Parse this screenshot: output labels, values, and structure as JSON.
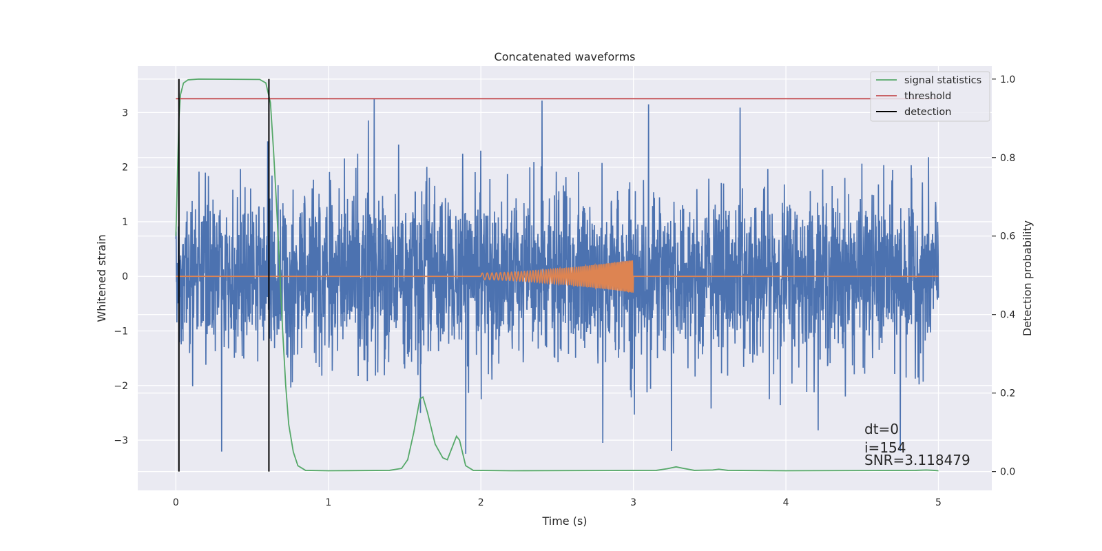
{
  "chart_data": {
    "type": "line",
    "title": "Concatenated waveforms",
    "xlabel": "Time (s)",
    "ylabel": "Whitened strain",
    "y2label": "Detection probability",
    "xlim": [
      -0.25,
      5.35
    ],
    "ylim": [
      -3.92,
      3.85
    ],
    "y2lim": [
      -0.048,
      1.033
    ],
    "xticks": [
      "0",
      "1",
      "2",
      "3",
      "4",
      "5"
    ],
    "yticks": [
      "−3",
      "−2",
      "−1",
      "0",
      "1",
      "2",
      "3"
    ],
    "y2ticks": [
      "0.0",
      "0.2",
      "0.4",
      "0.6",
      "0.8",
      "1.0"
    ],
    "grid": true,
    "legend_position": "top-right",
    "legend": [
      {
        "label": "signal statistics",
        "color": "#55a868"
      },
      {
        "label": "threshold",
        "color": "#c44e52"
      },
      {
        "label": "detection",
        "color": "#000000"
      }
    ],
    "series": [
      {
        "name": "",
        "axis": "left",
        "color": "#4c72b0",
        "description_kind": "noise",
        "x_range": [
          0,
          5
        ],
        "amplitude_typical": 0.75,
        "amplitude_peak": 3.5,
        "notable_peaks": [
          {
            "x": 1.3,
            "y": 3.25
          },
          {
            "x": 2.4,
            "y": 3.22
          },
          {
            "x": 3.1,
            "y": 3.15
          },
          {
            "x": 3.7,
            "y": 3.5
          },
          {
            "x": 0.3,
            "y": -3.55
          },
          {
            "x": 3.25,
            "y": -3.2
          },
          {
            "x": 4.75,
            "y": -3.2
          },
          {
            "x": 1.9,
            "y": -3.25
          },
          {
            "x": 2.8,
            "y": -3.05
          }
        ]
      },
      {
        "name": "",
        "axis": "left",
        "color": "#dd8452",
        "description_kind": "chirp",
        "flat": [
          [
            0,
            0
          ],
          [
            5,
            0
          ]
        ],
        "chirp_start": 2.0,
        "chirp_end": 3.0,
        "amp_start": 0.06,
        "amp_end": 0.3
      },
      {
        "name": "signal statistics",
        "axis": "right",
        "color": "#55a868",
        "points": [
          [
            0.0,
            0.6
          ],
          [
            0.01,
            0.75
          ],
          [
            0.02,
            0.9
          ],
          [
            0.03,
            0.96
          ],
          [
            0.05,
            0.99
          ],
          [
            0.08,
            0.998
          ],
          [
            0.15,
            1.0
          ],
          [
            0.55,
            0.999
          ],
          [
            0.59,
            0.99
          ],
          [
            0.62,
            0.94
          ],
          [
            0.64,
            0.82
          ],
          [
            0.66,
            0.68
          ],
          [
            0.68,
            0.52
          ],
          [
            0.7,
            0.36
          ],
          [
            0.72,
            0.22
          ],
          [
            0.74,
            0.12
          ],
          [
            0.77,
            0.05
          ],
          [
            0.8,
            0.015
          ],
          [
            0.85,
            0.003
          ],
          [
            1.0,
            0.002
          ],
          [
            1.4,
            0.003
          ],
          [
            1.48,
            0.008
          ],
          [
            1.52,
            0.03
          ],
          [
            1.56,
            0.1
          ],
          [
            1.6,
            0.185
          ],
          [
            1.62,
            0.19
          ],
          [
            1.65,
            0.15
          ],
          [
            1.7,
            0.07
          ],
          [
            1.75,
            0.035
          ],
          [
            1.78,
            0.03
          ],
          [
            1.81,
            0.06
          ],
          [
            1.84,
            0.09
          ],
          [
            1.86,
            0.08
          ],
          [
            1.9,
            0.015
          ],
          [
            1.95,
            0.003
          ],
          [
            2.2,
            0.002
          ],
          [
            3.15,
            0.003
          ],
          [
            3.22,
            0.007
          ],
          [
            3.28,
            0.012
          ],
          [
            3.33,
            0.008
          ],
          [
            3.4,
            0.003
          ],
          [
            3.52,
            0.004
          ],
          [
            3.56,
            0.006
          ],
          [
            3.62,
            0.003
          ],
          [
            4.0,
            0.002
          ],
          [
            4.85,
            0.003
          ],
          [
            4.92,
            0.004
          ],
          [
            4.97,
            0.003
          ],
          [
            5.0,
            0.002
          ]
        ]
      },
      {
        "name": "threshold",
        "axis": "right",
        "color": "#c44e52",
        "points": [
          [
            0.0,
            0.95
          ],
          [
            5.0,
            0.95
          ]
        ]
      },
      {
        "name": "detection",
        "axis": "right",
        "color": "#000000",
        "kind": "vlines",
        "x": [
          0.02,
          0.61
        ],
        "y_range": [
          0.0,
          1.0
        ]
      }
    ],
    "annotations": [
      "dt=0",
      "i=154",
      "SNR=3.118479"
    ]
  }
}
